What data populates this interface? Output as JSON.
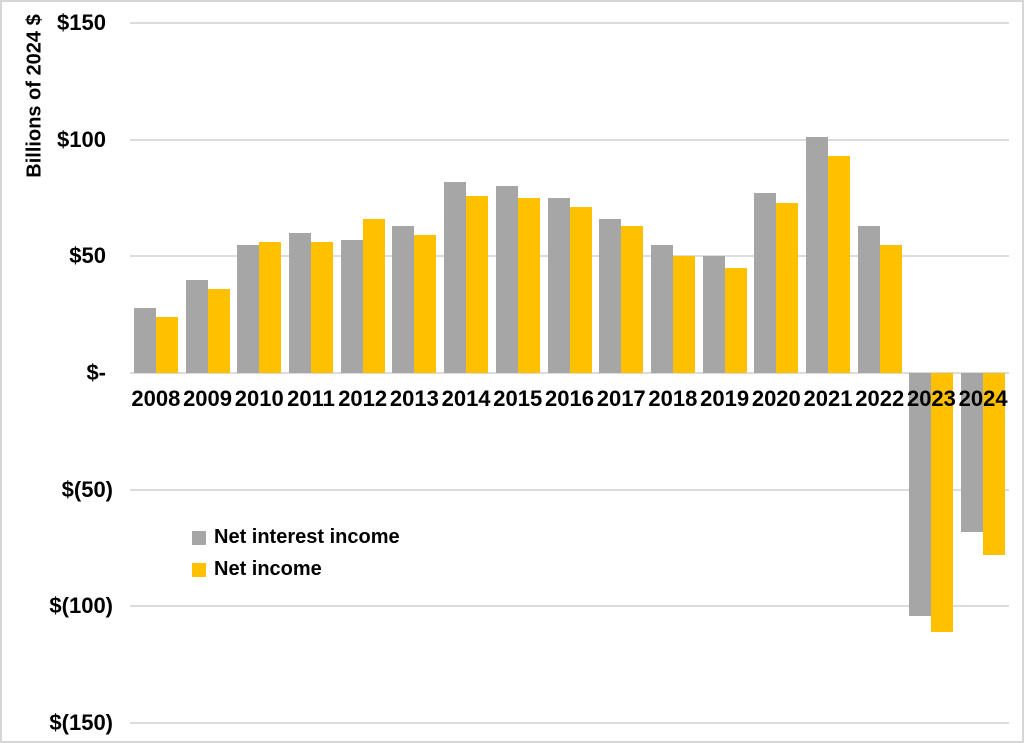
{
  "chart_data": {
    "type": "bar",
    "title": "",
    "xlabel": "",
    "ylabel": "Billions of 2024 $",
    "categories": [
      "2008",
      "2009",
      "2010",
      "2011",
      "2012",
      "2013",
      "2014",
      "2015",
      "2016",
      "2017",
      "2018",
      "2019",
      "2020",
      "2021",
      "2022",
      "2023",
      "2024"
    ],
    "series": [
      {
        "name": "Net interest income",
        "color": "#a6a6a6",
        "values": [
          28,
          40,
          55,
          60,
          57,
          63,
          82,
          80,
          75,
          66,
          55,
          50,
          77,
          101,
          63,
          -104,
          -68
        ]
      },
      {
        "name": "Net income",
        "color": "#ffc000",
        "values": [
          24,
          36,
          56,
          56,
          66,
          59,
          76,
          75,
          71,
          63,
          50,
          45,
          73,
          93,
          55,
          -111,
          -78
        ]
      }
    ],
    "ylim": [
      -150,
      150
    ],
    "yticks": [
      {
        "value": 150,
        "label": "$150"
      },
      {
        "value": 100,
        "label": "$100"
      },
      {
        "value": 50,
        "label": "$50"
      },
      {
        "value": 0,
        "label": "$-"
      },
      {
        "value": -50,
        "label": "$(50)"
      },
      {
        "value": -100,
        "label": "$(100)"
      },
      {
        "value": -150,
        "label": "$(150)"
      }
    ],
    "grid": true,
    "legend_position": "inside-left-middle"
  },
  "colors": {
    "grid": "#dcdcdc",
    "frame_border": "#d6d6d6",
    "text": "#000000"
  }
}
